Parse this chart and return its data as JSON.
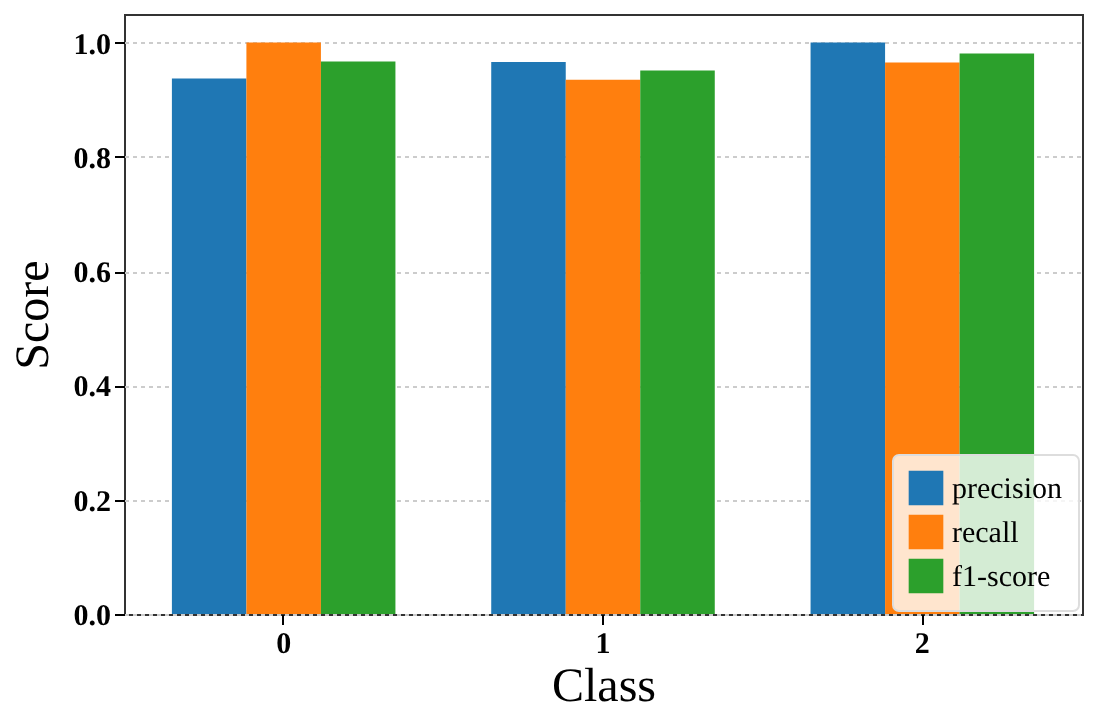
{
  "chart_data": {
    "type": "bar",
    "xlabel": "Class",
    "ylabel": "Score",
    "categories": [
      "0",
      "1",
      "2"
    ],
    "series": [
      {
        "name": "precision",
        "color": "#1f77b4",
        "values": [
          0.937,
          0.966,
          1.0
        ]
      },
      {
        "name": "recall",
        "color": "#ff7f0e",
        "values": [
          1.0,
          0.935,
          0.965
        ]
      },
      {
        "name": "f1-score",
        "color": "#2ca02c",
        "values": [
          0.967,
          0.951,
          0.981
        ]
      }
    ],
    "ylim": [
      0,
      1.05
    ],
    "yticks": [
      {
        "value": 0,
        "label": "0.0"
      },
      {
        "value": 0.2,
        "label": "0.2"
      },
      {
        "value": 0.4,
        "label": "0.4"
      },
      {
        "value": 0.6,
        "label": "0.6"
      },
      {
        "value": 0.8,
        "label": "0.8"
      },
      {
        "value": 1,
        "label": "1.0"
      }
    ],
    "grid": "y",
    "legend": "bottom right"
  }
}
